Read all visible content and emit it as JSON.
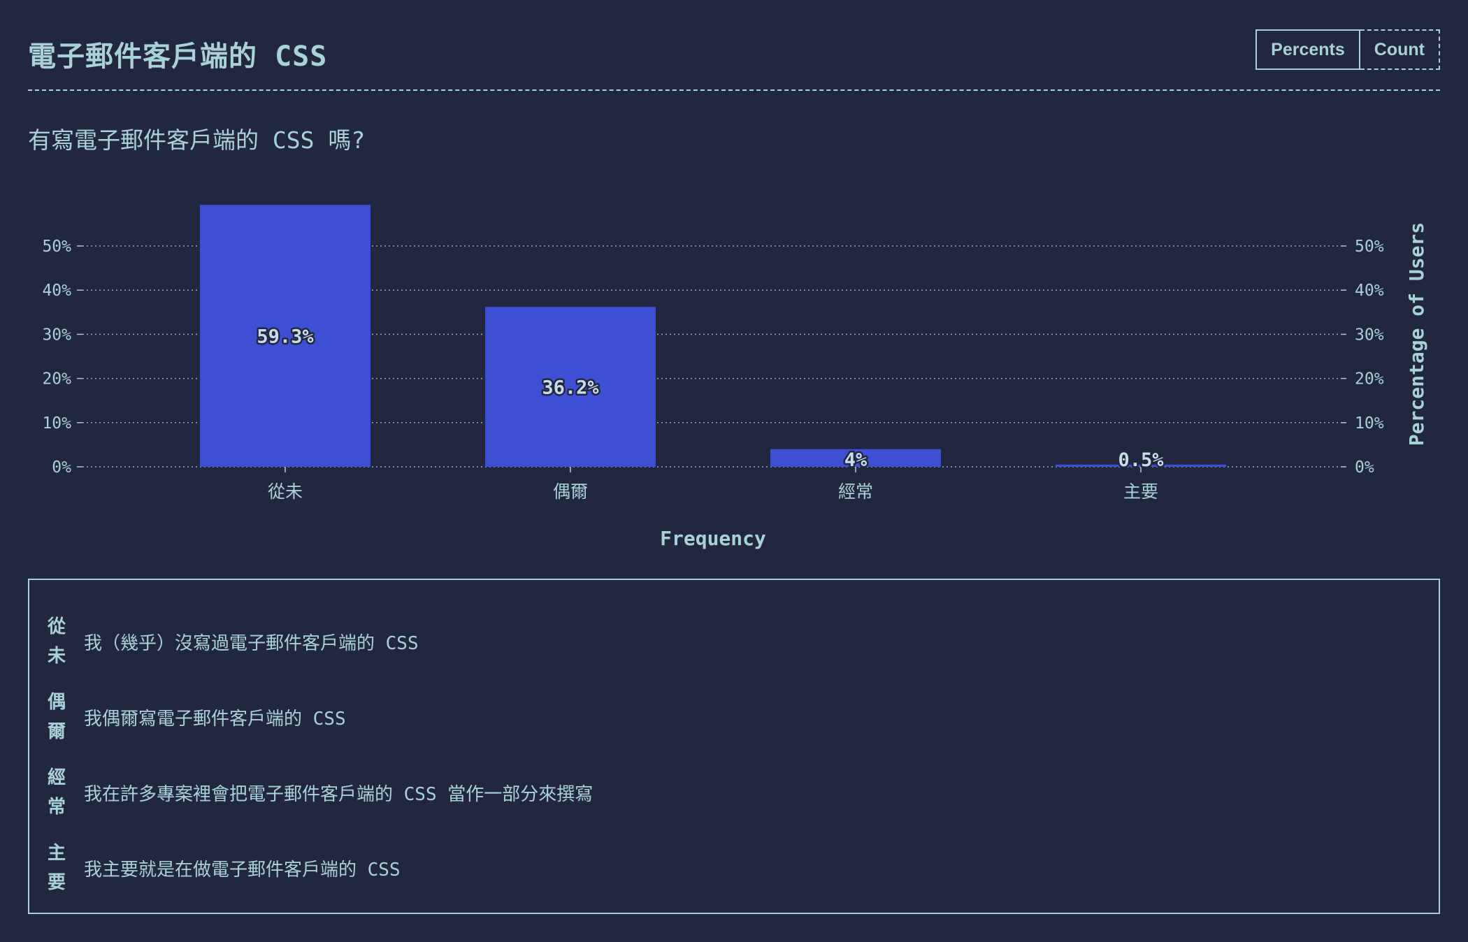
{
  "header": {
    "title": "電子郵件客戶端的 CSS",
    "toggle": {
      "percents_label": "Percents",
      "count_label": "Count",
      "active": "Percents"
    }
  },
  "question": "有寫電子郵件客戶端的 CSS 嗎?",
  "colors": {
    "background": "#222741",
    "text": "#a8d1d8",
    "bar": "#3d50d4"
  },
  "chart_data": {
    "type": "bar",
    "categories": [
      "從未",
      "偶爾",
      "經常",
      "主要"
    ],
    "values": [
      59.3,
      36.2,
      4,
      0.5
    ],
    "value_labels": [
      "59.3%",
      "36.2%",
      "4%",
      "0.5%"
    ],
    "xlabel": "Frequency",
    "ylabel": "Percentage of Users",
    "ylim": [
      0,
      50
    ],
    "yticks": [
      "0%",
      "10%",
      "20%",
      "30%",
      "40%",
      "50%"
    ],
    "y_axis_both_sides": true,
    "grid": true
  },
  "legend": [
    {
      "key": "從未",
      "description": "我（幾乎）沒寫過電子郵件客戶端的 CSS"
    },
    {
      "key": "偶爾",
      "description": "我偶爾寫電子郵件客戶端的 CSS"
    },
    {
      "key": "經常",
      "description": "我在許多專案裡會把電子郵件客戶端的 CSS 當作一部分來撰寫"
    },
    {
      "key": "主要",
      "description": "我主要就是在做電子郵件客戶端的 CSS"
    }
  ]
}
